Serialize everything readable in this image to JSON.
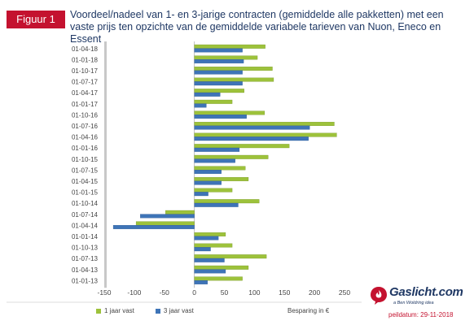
{
  "figure_label": "Figuur 1",
  "title": "Voordeel/nadeel van 1- en 3-jarige contracten (gemiddelde alle pakketten) met een vaste prijs ten opzichte van de gemiddelde variabele tarieven van Nuon, Eneco en Essent",
  "logo": {
    "name": "Gaslicht.com",
    "tagline": "a Ben Woldring idea"
  },
  "peildatum": "peildatum: 29-11-2018",
  "colors": {
    "one_year": "#9dc23b",
    "three_year": "#3e74b7",
    "brand_red": "#c4122f",
    "brand_navy": "#1f3864"
  },
  "chart_data": {
    "type": "bar",
    "orientation": "horizontal",
    "categories": [
      "01-04-18",
      "01-01-18",
      "01-10-17",
      "01-07-17",
      "01-04-17",
      "01-01-17",
      "01-10-16",
      "01-07-16",
      "01-04-16",
      "01-01-16",
      "01-10-15",
      "01-07-15",
      "01-04-15",
      "01-01-15",
      "01-10-14",
      "01-07-14",
      "01-04-14",
      "01-01-14",
      "01-10-13",
      "01-07-13",
      "01-04-13",
      "01-01-13"
    ],
    "series": [
      {
        "name": "1 jaar vast",
        "values": [
          118,
          105,
          130,
          132,
          83,
          63,
          117,
          233,
          237,
          158,
          123,
          85,
          90,
          63,
          108,
          -48,
          -97,
          52,
          63,
          120,
          90,
          80
        ]
      },
      {
        "name": "3 jaar vast",
        "values": [
          80,
          82,
          80,
          80,
          43,
          20,
          87,
          192,
          190,
          75,
          68,
          45,
          45,
          23,
          73,
          -90,
          -135,
          40,
          27,
          50,
          52,
          22
        ]
      }
    ],
    "xlabel": "Besparing in €",
    "ylabel": "",
    "xlim": [
      -150,
      250
    ],
    "xticks": [
      -150,
      -100,
      -50,
      0,
      50,
      100,
      150,
      200,
      250
    ],
    "legend_position": "bottom-left",
    "grid": false
  }
}
